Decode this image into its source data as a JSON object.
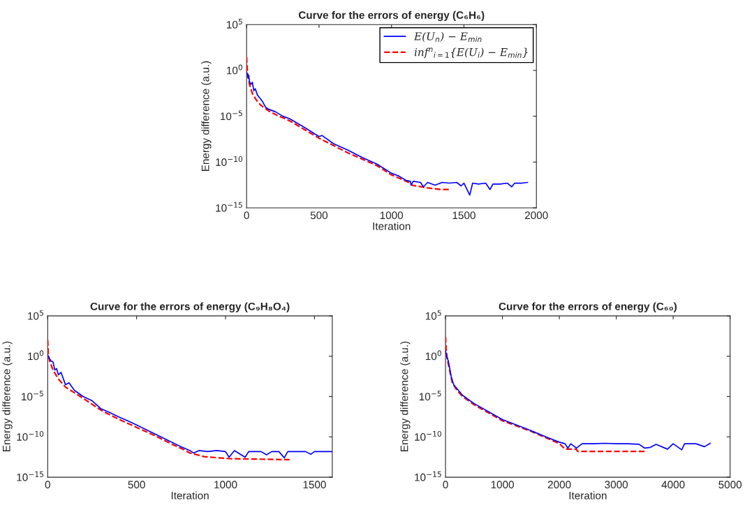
{
  "chart_data": [
    {
      "type": "line",
      "title": "Curve for the errors of energy (C₆H₆)",
      "xlabel": "Iteration",
      "ylabel": "Energy difference (a.u.)",
      "log": "y",
      "xlim": [
        0,
        2000
      ],
      "xticks": [
        0,
        500,
        1000,
        1500,
        2000
      ],
      "ylim": [
        1e-15,
        100000
      ],
      "yticks": [
        {
          "value": 1e-15,
          "label": "10$^{−15}$"
        },
        {
          "value": 1e-10,
          "label": "10$^{−10}$"
        },
        {
          "value": 1e-05,
          "label": "10$^{−5}$"
        },
        {
          "value": 1,
          "label": "10$^{0}$"
        },
        {
          "value": 100000,
          "label": "10$^{5}$"
        }
      ],
      "legend": "top right",
      "grid": false,
      "series": [
        {
          "name": "E(U$_{n}$) − E$_{min}$",
          "color": "#0000ff",
          "line_style": "solid",
          "x": [
            0,
            5,
            10,
            15,
            20,
            30,
            40,
            50,
            60,
            75,
            90,
            110,
            130,
            150,
            200,
            250,
            300,
            400,
            500,
            520,
            600,
            700,
            800,
            900,
            1000,
            1050,
            1100,
            1130,
            1135,
            1150,
            1200,
            1220,
            1250,
            1300,
            1350,
            1400,
            1450,
            1480,
            1500,
            1540,
            1560,
            1600,
            1650,
            1680,
            1700,
            1750,
            1800,
            1830,
            1850,
            1900,
            1940
          ],
          "values": [
            0.7,
            0.4,
            0.16,
            0.3,
            0.06,
            0.03,
            0.05,
            0.006,
            0.01,
            0.002,
            0.001,
            0.0004,
            0.0001,
            6e-05,
            3e-05,
            1e-05,
            5e-06,
            6e-07,
            6e-08,
            8e-08,
            1e-08,
            2e-09,
            3e-10,
            6e-11,
            6e-12,
            3e-12,
            1e-12,
            8e-13,
            3e-13,
            8e-13,
            6e-13,
            2e-13,
            6e-13,
            3e-13,
            6e-13,
            5e-13,
            6e-13,
            2.5e-13,
            5e-13,
            2.5e-14,
            5e-13,
            4e-13,
            5e-13,
            1e-13,
            4e-13,
            4e-13,
            5e-13,
            2e-13,
            5e-13,
            5e-13,
            6e-13
          ]
        },
        {
          "name": "inf$^{n}$$_{i=1}${E(U$_{i}$) − E$_{min}$}",
          "color": "#ff0000",
          "line_style": "dashed",
          "x": [
            0,
            3,
            8,
            20,
            40,
            70,
            100,
            150,
            200,
            300,
            500,
            700,
            900,
            1000,
            1130,
            1140,
            1250,
            1340,
            1410
          ],
          "values": [
            30,
            3,
            0.3,
            0.03,
            0.003,
            0.0005,
            0.00015,
            4e-05,
            1.5e-05,
            3e-06,
            4e-08,
            1e-09,
            4e-11,
            4e-12,
            5e-13,
            3e-13,
            1.5e-13,
            1e-13,
            1e-13
          ]
        }
      ]
    },
    {
      "type": "line",
      "title": "Curve for the errors of energy (C₉H₈O₄)",
      "xlabel": "Iteration",
      "ylabel": "Energy difference (a.u.)",
      "log": "y",
      "xlim": [
        0,
        1600
      ],
      "xticks": [
        0,
        500,
        1000,
        1500
      ],
      "ylim": [
        1e-15,
        100000
      ],
      "yticks": [
        {
          "value": 1e-15,
          "label": "10$^{−15}$"
        },
        {
          "value": 1e-10,
          "label": "10$^{−10}$"
        },
        {
          "value": 1e-05,
          "label": "10$^{−5}$"
        },
        {
          "value": 1,
          "label": "10$^{0}$"
        },
        {
          "value": 100000,
          "label": "10$^{5}$"
        }
      ],
      "legend": false,
      "grid": false,
      "series": [
        {
          "color": "#0000ff",
          "line_style": "solid",
          "x": [
            0,
            10,
            20,
            30,
            40,
            50,
            60,
            75,
            100,
            120,
            150,
            200,
            250,
            300,
            350,
            400,
            450,
            500,
            600,
            700,
            750,
            800,
            820,
            850,
            900,
            950,
            1000,
            1020,
            1050,
            1110,
            1130,
            1200,
            1230,
            1260,
            1300,
            1330,
            1350,
            1400,
            1450,
            1480,
            1500,
            1550,
            1598
          ],
          "values": [
            1.5,
            0.5,
            0.25,
            0.2,
            0.02,
            0.03,
            0.005,
            0.01,
            0.0003,
            0.0005,
            6e-05,
            1e-05,
            3e-06,
            3e-07,
            1e-07,
            3e-08,
            1e-08,
            3e-09,
            2.5e-10,
            2e-11,
            6e-12,
            2e-12,
            1e-12,
            2e-12,
            1.5e-12,
            2e-12,
            1.5e-12,
            3e-13,
            2e-12,
            3e-13,
            1.5e-12,
            1.5e-12,
            6e-13,
            1.5e-12,
            1.5e-12,
            2.5e-13,
            1.5e-12,
            1.5e-12,
            1.5e-12,
            7e-13,
            1.5e-12,
            1.5e-12,
            1.5e-12
          ]
        },
        {
          "color": "#ff0000",
          "line_style": "dashed",
          "x": [
            0,
            3,
            10,
            30,
            60,
            100,
            200,
            300,
            400,
            500,
            600,
            700,
            760,
            800,
            880,
            1020,
            1340,
            1360
          ],
          "values": [
            100,
            3,
            0.3,
            0.02,
            0.0015,
            0.00015,
            6e-06,
            2e-07,
            1.5e-08,
            1.5e-09,
            1.5e-10,
            1.2e-11,
            3e-12,
            1e-12,
            3.5e-13,
            2e-13,
            1.5e-13,
            1.5e-13
          ]
        }
      ]
    },
    {
      "type": "line",
      "title": "Curve for the errors of energy (C₆₀)",
      "xlabel": "Iteration",
      "ylabel": "Energy difference (a.u.)",
      "log": "y",
      "xlim": [
        0,
        5000
      ],
      "xticks": [
        0,
        1000,
        2000,
        3000,
        4000,
        5000
      ],
      "ylim": [
        1e-15,
        100000
      ],
      "yticks": [
        {
          "value": 1e-15,
          "label": "10$^{−15}$"
        },
        {
          "value": 1e-10,
          "label": "10$^{−10}$"
        },
        {
          "value": 1e-05,
          "label": "10$^{−5}$"
        },
        {
          "value": 1,
          "label": "10$^{0}$"
        },
        {
          "value": 100000,
          "label": "10$^{5}$"
        }
      ],
      "legend": false,
      "grid": false,
      "series": [
        {
          "color": "#0000ff",
          "line_style": "solid",
          "x": [
            0,
            20,
            50,
            80,
            100,
            130,
            150,
            200,
            300,
            500,
            1000,
            1500,
            1800,
            2000,
            2100,
            2150,
            2200,
            2300,
            2400,
            2600,
            2800,
            3000,
            3200,
            3400,
            3500,
            3600,
            3700,
            3900,
            4000,
            4150,
            4200,
            4400,
            4550,
            4650
          ],
          "values": [
            5,
            1,
            0.25,
            0.02,
            0.003,
            0.0006,
            0.00025,
            0.0001,
            1.4e-05,
            1.4e-06,
            1.4e-08,
            6e-10,
            8e-11,
            2.2e-11,
            1.4e-11,
            4e-12,
            1.4e-11,
            4e-12,
            1.4e-11,
            1.4e-11,
            1.6e-11,
            1.4e-11,
            1.4e-11,
            1.2e-11,
            4e-12,
            5e-12,
            1.2e-11,
            3e-12,
            1.4e-11,
            2.5e-12,
            1.4e-11,
            1.4e-11,
            6e-12,
            1.6e-11
          ]
        },
        {
          "color": "#ff0000",
          "line_style": "dashed",
          "x": [
            0,
            10,
            30,
            80,
            120,
            200,
            300,
            500,
            1000,
            1500,
            1800,
            2000,
            2100,
            2300,
            2320,
            3500
          ],
          "values": [
            250,
            10,
            0.5,
            0.01,
            0.0005,
            6e-05,
            1e-05,
            1e-06,
            1e-08,
            5e-10,
            6e-11,
            1.5e-11,
            3e-12,
            3e-12,
            1.6e-12,
            1.6e-12
          ]
        }
      ]
    }
  ]
}
